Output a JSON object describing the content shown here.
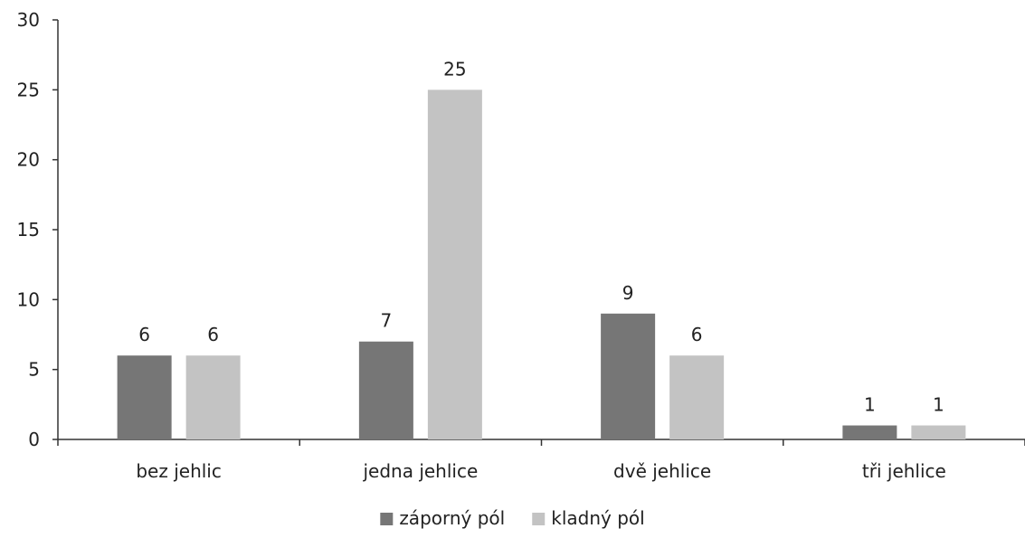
{
  "chart_data": {
    "type": "bar",
    "title": "",
    "xlabel": "",
    "ylabel": "",
    "categories": [
      "bez jehlic",
      "jedna jehlice",
      "dvě jehlice",
      "tři jehlice"
    ],
    "series": [
      {
        "name": "záporný pól",
        "values": [
          6,
          7,
          9,
          1
        ],
        "color": "#767676"
      },
      {
        "name": "kladný pól",
        "values": [
          6,
          25,
          6,
          1
        ],
        "color": "#c3c3c3"
      }
    ],
    "ylim": [
      0,
      30
    ],
    "yticks": [
      0,
      5,
      10,
      15,
      20,
      25,
      30
    ],
    "grid": false,
    "legend_position": "bottom"
  }
}
